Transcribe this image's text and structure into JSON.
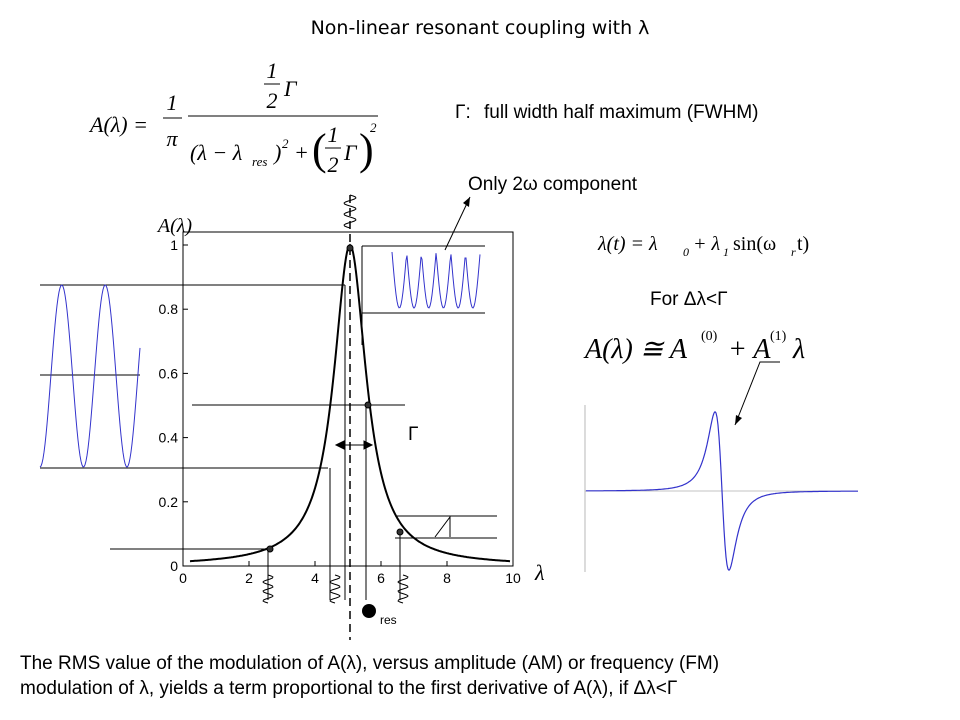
{
  "title": "Non-linear resonant coupling with λ",
  "formula_lorentz": {
    "lhs": "A(λ) =",
    "c_num": "1",
    "c_den": "π",
    "half_num": "1",
    "half_den": "2",
    "gamma": "Γ",
    "den_term": "(λ − λ",
    "den_sub": "res",
    "den_close": ")",
    "sq1": "2",
    "plus": "+",
    "lparen": "(",
    "p_half_num": "1",
    "p_half_den": "2",
    "p_gamma": "Γ",
    "rparen": ")",
    "sq2": "2"
  },
  "fwhm_symbol": "Γ:",
  "fwhm_text": "full width half maximum (FWHM)",
  "only_2w": "Only 2ω component",
  "formula_mod": {
    "a": "λ(t) = λ",
    "b": "0",
    "c": "+ λ",
    "d": "1",
    "e": "sin(ω",
    "f": "r",
    "g": "t)"
  },
  "condition": "For Δλ<Γ",
  "formula_approx": {
    "a": "A(λ) ≅ A",
    "b": "(0)",
    "c": "+ A",
    "d": "(1)",
    "e": "λ"
  },
  "main_plot": {
    "y_label": "A(λ)",
    "x_label": "λ",
    "xlim": [
      0,
      10
    ],
    "ylim": [
      0,
      1
    ],
    "xticks": [
      0,
      2,
      4,
      6,
      8,
      10
    ],
    "yticks": [
      0,
      0.2,
      0.4,
      0.6,
      0.8,
      1
    ],
    "width_label": "Γ"
  },
  "res_label": "res",
  "footer": {
    "line1": "The RMS value of the modulation of A(λ), versus amplitude (AM) or frequency (FM)",
    "line2": "modulation of λ, yields a term proportional to the first derivative of A(λ), if Δλ<Γ"
  }
}
